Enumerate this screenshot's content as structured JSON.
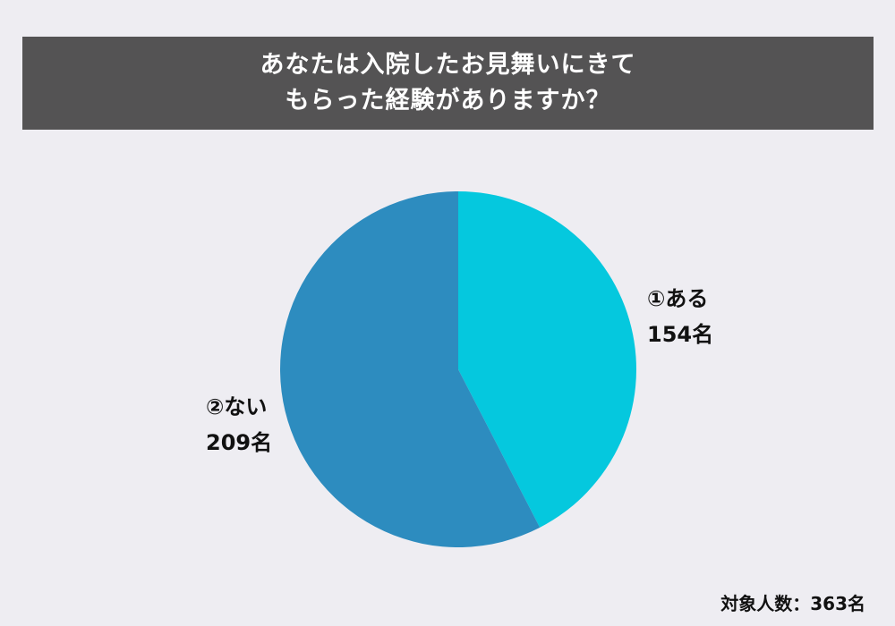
{
  "title": {
    "line1": "あなたは入院したお見舞いにきて",
    "line2": "もらった経験がありますか？"
  },
  "chart_data": {
    "type": "pie",
    "title": "あなたは入院したお見舞いにきてもらった経験がありますか？",
    "slices": [
      {
        "label": "①ある",
        "value": 154,
        "value_label": "154名",
        "color": "#05c8de"
      },
      {
        "label": "②ない",
        "value": 209,
        "value_label": "209名",
        "color": "#2d8cbf"
      }
    ],
    "total": 363,
    "start": "12 o'clock",
    "direction": "clockwise"
  },
  "labels": {
    "aru": {
      "name": "①ある",
      "count": "154名"
    },
    "nai": {
      "name": "②ない",
      "count": "209名"
    }
  },
  "footer": {
    "respondents": "対象人数：363名"
  }
}
